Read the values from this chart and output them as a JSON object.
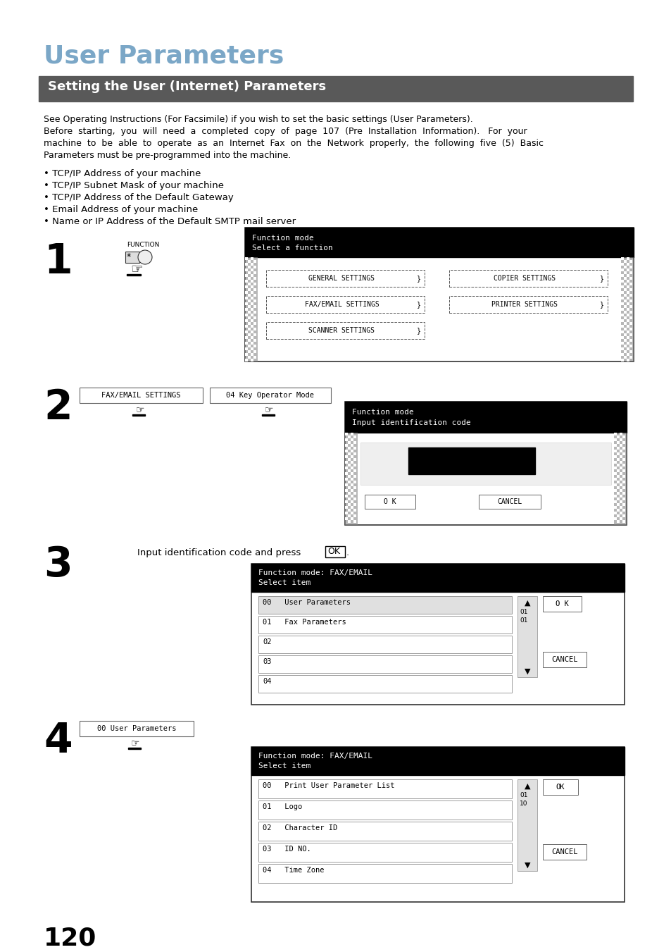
{
  "page_bg": "#ffffff",
  "title": "User Parameters",
  "title_color": "#7ba7c7",
  "section_bg": "#595959",
  "section_text": "Setting the User (Internet) Parameters",
  "section_text_color": "#ffffff",
  "body_text_color": "#000000",
  "p1_lines": [
    "See Operating Instructions (For Facsimile) if you wish to set the basic settings (User Parameters).",
    "Before  starting,  you  will  need  a  completed  copy  of  page  107  (Pre  Installation  Information).   For  your",
    "machine  to  be  able  to  operate  as  an  Internet  Fax  on  the  Network  properly,  the  following  five  (5)  Basic",
    "Parameters must be pre-programmed into the machine."
  ],
  "bullets": [
    "• TCP/IP Address of your machine",
    "• TCP/IP Subnet Mask of your machine",
    "• TCP/IP Address of the Default Gateway",
    "• Email Address of your machine",
    "• Name or IP Address of the Default SMTP mail server"
  ],
  "step1_num": "1",
  "step2_num": "2",
  "step3_num": "3",
  "step4_num": "4",
  "step3_text": "Input identification code and press ",
  "step3_ok": "OK",
  "step4_label": "00 User Parameters",
  "screen1_title1": "Function mode",
  "screen1_title2": "Select a function",
  "screen1_buttons_left": [
    "GENERAL SETTINGS",
    "FAX/EMAIL SETTINGS",
    "SCANNER SETTINGS"
  ],
  "screen1_buttons_right": [
    "COPIER SETTINGS",
    "PRINTER SETTINGS"
  ],
  "screen2_title1": "Function mode",
  "screen2_title2": "Input identification code",
  "screen3_title1": "Function mode: FAX/EMAIL",
  "screen3_title2": "Select item",
  "screen3_items": [
    "00   User Parameters",
    "01   Fax Parameters",
    "02",
    "03",
    "04"
  ],
  "screen4_title1": "Function mode: FAX/EMAIL",
  "screen4_title2": "Select item",
  "screen4_items": [
    "00   Print User Parameter List",
    "01   Logo",
    "02   Character ID",
    "03   ID NO.",
    "04   Time Zone"
  ],
  "step2_btn1": "FAX/EMAIL SETTINGS",
  "step2_btn2": "04 Key Operator Mode",
  "page_num": "120"
}
